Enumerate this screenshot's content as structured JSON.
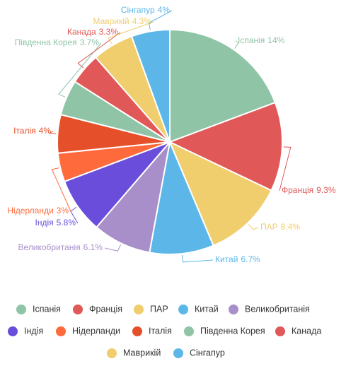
{
  "chart_data": {
    "type": "pie",
    "categories": [
      "Іспанія",
      "Франція",
      "ПАР",
      "Китай",
      "Великобританія",
      "Індія",
      "Нідерланди",
      "Італія",
      "Південна Корея",
      "Канада",
      "Маврикій",
      "Сінгапур"
    ],
    "values": [
      14,
      9.3,
      8.4,
      6.7,
      6.1,
      5.8,
      3,
      4,
      3.7,
      3.3,
      4.3,
      4
    ],
    "value_labels": [
      "14%",
      "9.3%",
      "8.4%",
      "6.7%",
      "6.1%",
      "5.8%",
      "3%",
      "4%",
      "3.7%",
      "3.3%",
      "4.3%",
      "4%"
    ],
    "colors": [
      "#8fc4a6",
      "#e05858",
      "#f0cd6d",
      "#5cb7e8",
      "#a88fc9",
      "#6a4edb",
      "#ff6a3d",
      "#e5502a",
      "#8fc4a6",
      "#e05858",
      "#f0cd6d",
      "#5cb7e8"
    ],
    "legend": "bottom"
  }
}
